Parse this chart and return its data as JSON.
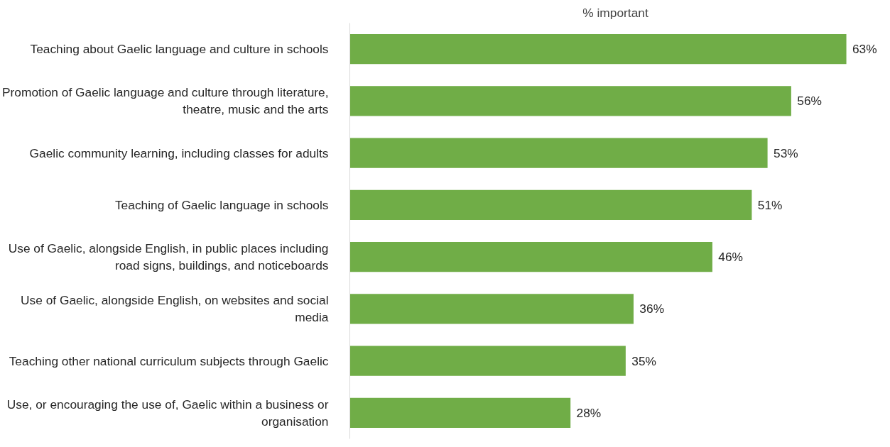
{
  "chart_data": {
    "type": "bar",
    "orientation": "horizontal",
    "title": "% important",
    "categories": [
      "Teaching about Gaelic language and culture in schools",
      "Promotion of Gaelic language and culture through literature, theatre, music and the arts",
      "Gaelic community learning, including classes for adults",
      "Teaching of Gaelic language in schools",
      "Use of Gaelic, alongside English, in public places including road signs, buildings, and noticeboards",
      "Use of Gaelic, alongside English, on websites and social media",
      "Teaching other national curriculum subjects through Gaelic",
      "Use, or encouraging the use of, Gaelic within a business or organisation"
    ],
    "values": [
      63,
      56,
      53,
      51,
      46,
      36,
      35,
      28
    ],
    "value_labels": [
      "63%",
      "56%",
      "53%",
      "51%",
      "46%",
      "36%",
      "35%",
      "28%"
    ],
    "color": "#70ad47",
    "grid": false
  }
}
